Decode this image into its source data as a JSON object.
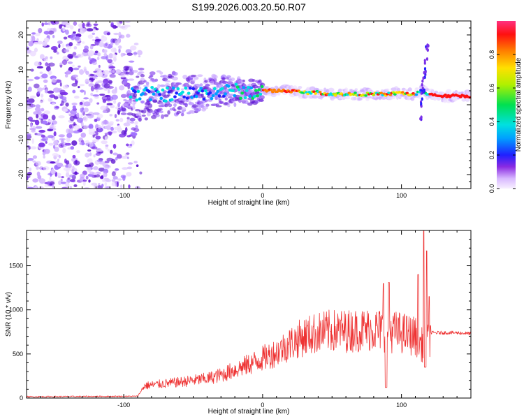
{
  "title": "S199.2026.003.20.50.R07",
  "chart_data": [
    {
      "type": "heatmap",
      "xlabel": "Height of straight line (km)",
      "ylabel": "Frequency (Hz)",
      "xlim": [
        -170,
        150
      ],
      "ylim": [
        -24,
        24
      ],
      "xticks": [
        -100,
        0,
        100
      ],
      "yticks": [
        -20,
        -10,
        0,
        10,
        20
      ],
      "xtick_labels": [
        "-100",
        "0",
        "100"
      ],
      "ytick_labels": [
        "-20",
        "-10",
        "0",
        "10",
        "20"
      ],
      "colorbar": {
        "label": "Normalized spectral amplitude",
        "range": [
          0,
          1
        ],
        "ticks": [
          0.0,
          0.2,
          0.4,
          0.6,
          0.8
        ],
        "tick_labels": [
          "0.0",
          "0.2",
          "0.4",
          "0.6",
          "0.8"
        ]
      },
      "ridge": {
        "x": [
          -95,
          -80,
          -60,
          -40,
          -20,
          -10,
          0,
          10,
          20,
          30,
          40,
          50,
          60,
          70,
          80,
          90,
          100,
          105,
          110,
          115,
          120,
          130,
          140,
          150
        ],
        "frequency": [
          3,
          3,
          3,
          3.5,
          4,
          3.5,
          4,
          4,
          4,
          3.5,
          3.5,
          3,
          3,
          3,
          3,
          3,
          3.5,
          3,
          3,
          4,
          3,
          2.5,
          2.5,
          2.5
        ]
      },
      "noise_region_x": [
        -170,
        -95
      ]
    },
    {
      "type": "line",
      "xlabel": "Height of straight line (km)",
      "ylabel": "SNR (10 * v/v)",
      "xlim": [
        -170,
        150
      ],
      "ylim": [
        0,
        1900
      ],
      "xticks": [
        -100,
        0,
        100
      ],
      "yticks": [
        0,
        500,
        1000,
        1500
      ],
      "xtick_labels": [
        "-100",
        "0",
        "100"
      ],
      "ytick_labels": [
        "0",
        "500",
        "1000",
        "1500"
      ],
      "color": "#ee3333",
      "trend": {
        "x": [
          -170,
          -90,
          -85,
          -60,
          -40,
          -30,
          -20,
          -10,
          0,
          10,
          20,
          30,
          40,
          50,
          60,
          70,
          80,
          90,
          100,
          110,
          115,
          120,
          121,
          130,
          140,
          150
        ],
        "y": [
          15,
          20,
          140,
          180,
          220,
          260,
          320,
          380,
          450,
          520,
          620,
          700,
          740,
          760,
          760,
          770,
          780,
          760,
          740,
          700,
          600,
          650,
          740,
          740,
          740,
          730
        ]
      },
      "spikes": [
        {
          "x": 87,
          "y": 1300
        },
        {
          "x": 91,
          "y": 1310
        },
        {
          "x": 112,
          "y": 1400
        },
        {
          "x": 116,
          "y": 1900
        },
        {
          "x": 118,
          "y": 1670
        },
        {
          "x": 120,
          "y": 1150
        }
      ],
      "dips": [
        {
          "x": 89,
          "y": 120
        },
        {
          "x": 117,
          "y": 350
        }
      ]
    }
  ]
}
